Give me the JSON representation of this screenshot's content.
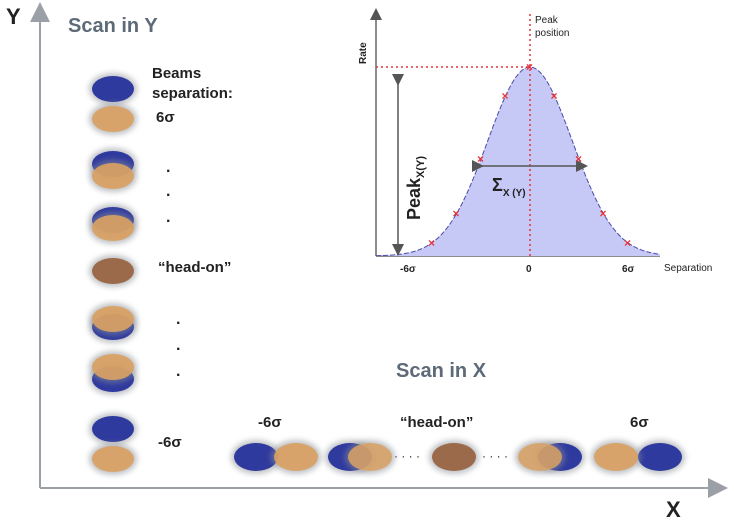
{
  "axes": {
    "x_label": "X",
    "y_label": "Y"
  },
  "scan_y": {
    "title": "Scan in Y",
    "separation_label_line1": "Beams",
    "separation_label_line2": "separation:",
    "top_value": "6σ",
    "head_on": "“head-on”",
    "bottom_value": "-6σ",
    "ellipsis_dot": "."
  },
  "scan_x": {
    "title": "Scan in X",
    "left_value": "-6σ",
    "head_on": "“head-on”",
    "right_value": "6σ",
    "ellipsis_dots": "· · · ·"
  },
  "inset_plot": {
    "y_axis_label": "Rate",
    "x_axis_label": "Separation",
    "peak_position_line1": "Peak",
    "peak_position_line2": "position",
    "peak_label": "Peak",
    "peak_subscript": "X(Y)",
    "sigma_label": "Σ",
    "sigma_subscript": "X (Y)",
    "tick_left": "-6σ",
    "tick_center": "0",
    "tick_right": "6σ"
  },
  "colors": {
    "blue_beam": "#2f3a9e",
    "orange_beam": "#d9a163",
    "overlap_beam": "#9b6a4a",
    "curve_fill": "#c6c8f5",
    "curve_line": "#4a4aa8",
    "marker": "#e8343a",
    "title_gray": "#5d6a78",
    "axis_gray": "#9aa0a6"
  },
  "chart_data": {
    "type": "area",
    "title": "",
    "xlabel": "Separation",
    "ylabel": "Rate",
    "x_tick_labels": [
      "-6σ",
      "0",
      "6σ"
    ],
    "curve": "gaussian",
    "x_range_sigma": [
      -7,
      7
    ],
    "markers_x_sigma": [
      -6,
      -4.5,
      -3,
      -1.5,
      0,
      1.5,
      3,
      4.5,
      6
    ],
    "annotations": [
      "Peak X(Y)",
      "Σ X (Y)",
      "Peak position"
    ]
  }
}
